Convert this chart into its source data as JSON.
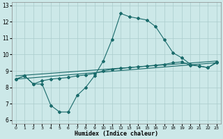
{
  "xlabel": "Humidex (Indice chaleur)",
  "xlim": [
    -0.5,
    23.5
  ],
  "ylim": [
    5.8,
    13.2
  ],
  "xticks": [
    0,
    1,
    2,
    3,
    4,
    5,
    6,
    7,
    8,
    9,
    10,
    11,
    12,
    13,
    14,
    15,
    16,
    17,
    18,
    19,
    20,
    21,
    22,
    23
  ],
  "yticks": [
    6,
    7,
    8,
    9,
    10,
    11,
    12,
    13
  ],
  "bg_color": "#cce8e8",
  "grid_color": "#aacccc",
  "line_color": "#1a6b6b",
  "line1_x": [
    0,
    1,
    2,
    3,
    4,
    5,
    6,
    7,
    8,
    9,
    10,
    11,
    12,
    13,
    14,
    15,
    16,
    17,
    18,
    19,
    20,
    21,
    22,
    23
  ],
  "line1_y": [
    8.5,
    8.7,
    8.2,
    8.2,
    6.9,
    6.5,
    6.5,
    7.5,
    8.0,
    8.7,
    9.6,
    10.9,
    12.5,
    12.3,
    12.2,
    12.1,
    11.7,
    10.9,
    10.1,
    9.8,
    9.4,
    9.3,
    9.2,
    9.5
  ],
  "line2_x": [
    0,
    1,
    2,
    3,
    4,
    5,
    6,
    7,
    8,
    9,
    10,
    11,
    12,
    13,
    14,
    15,
    16,
    17,
    18,
    19,
    20,
    21,
    22,
    23
  ],
  "line2_y": [
    8.5,
    8.7,
    8.2,
    8.4,
    8.5,
    8.55,
    8.6,
    8.7,
    8.75,
    8.85,
    9.0,
    9.1,
    9.15,
    9.2,
    9.25,
    9.3,
    9.35,
    9.4,
    9.5,
    9.55,
    9.35,
    9.3,
    9.2,
    9.55
  ],
  "line3_x": [
    0,
    23
  ],
  "line3_y": [
    8.5,
    9.5
  ],
  "line4_x": [
    0,
    23
  ],
  "line4_y": [
    8.7,
    9.6
  ]
}
